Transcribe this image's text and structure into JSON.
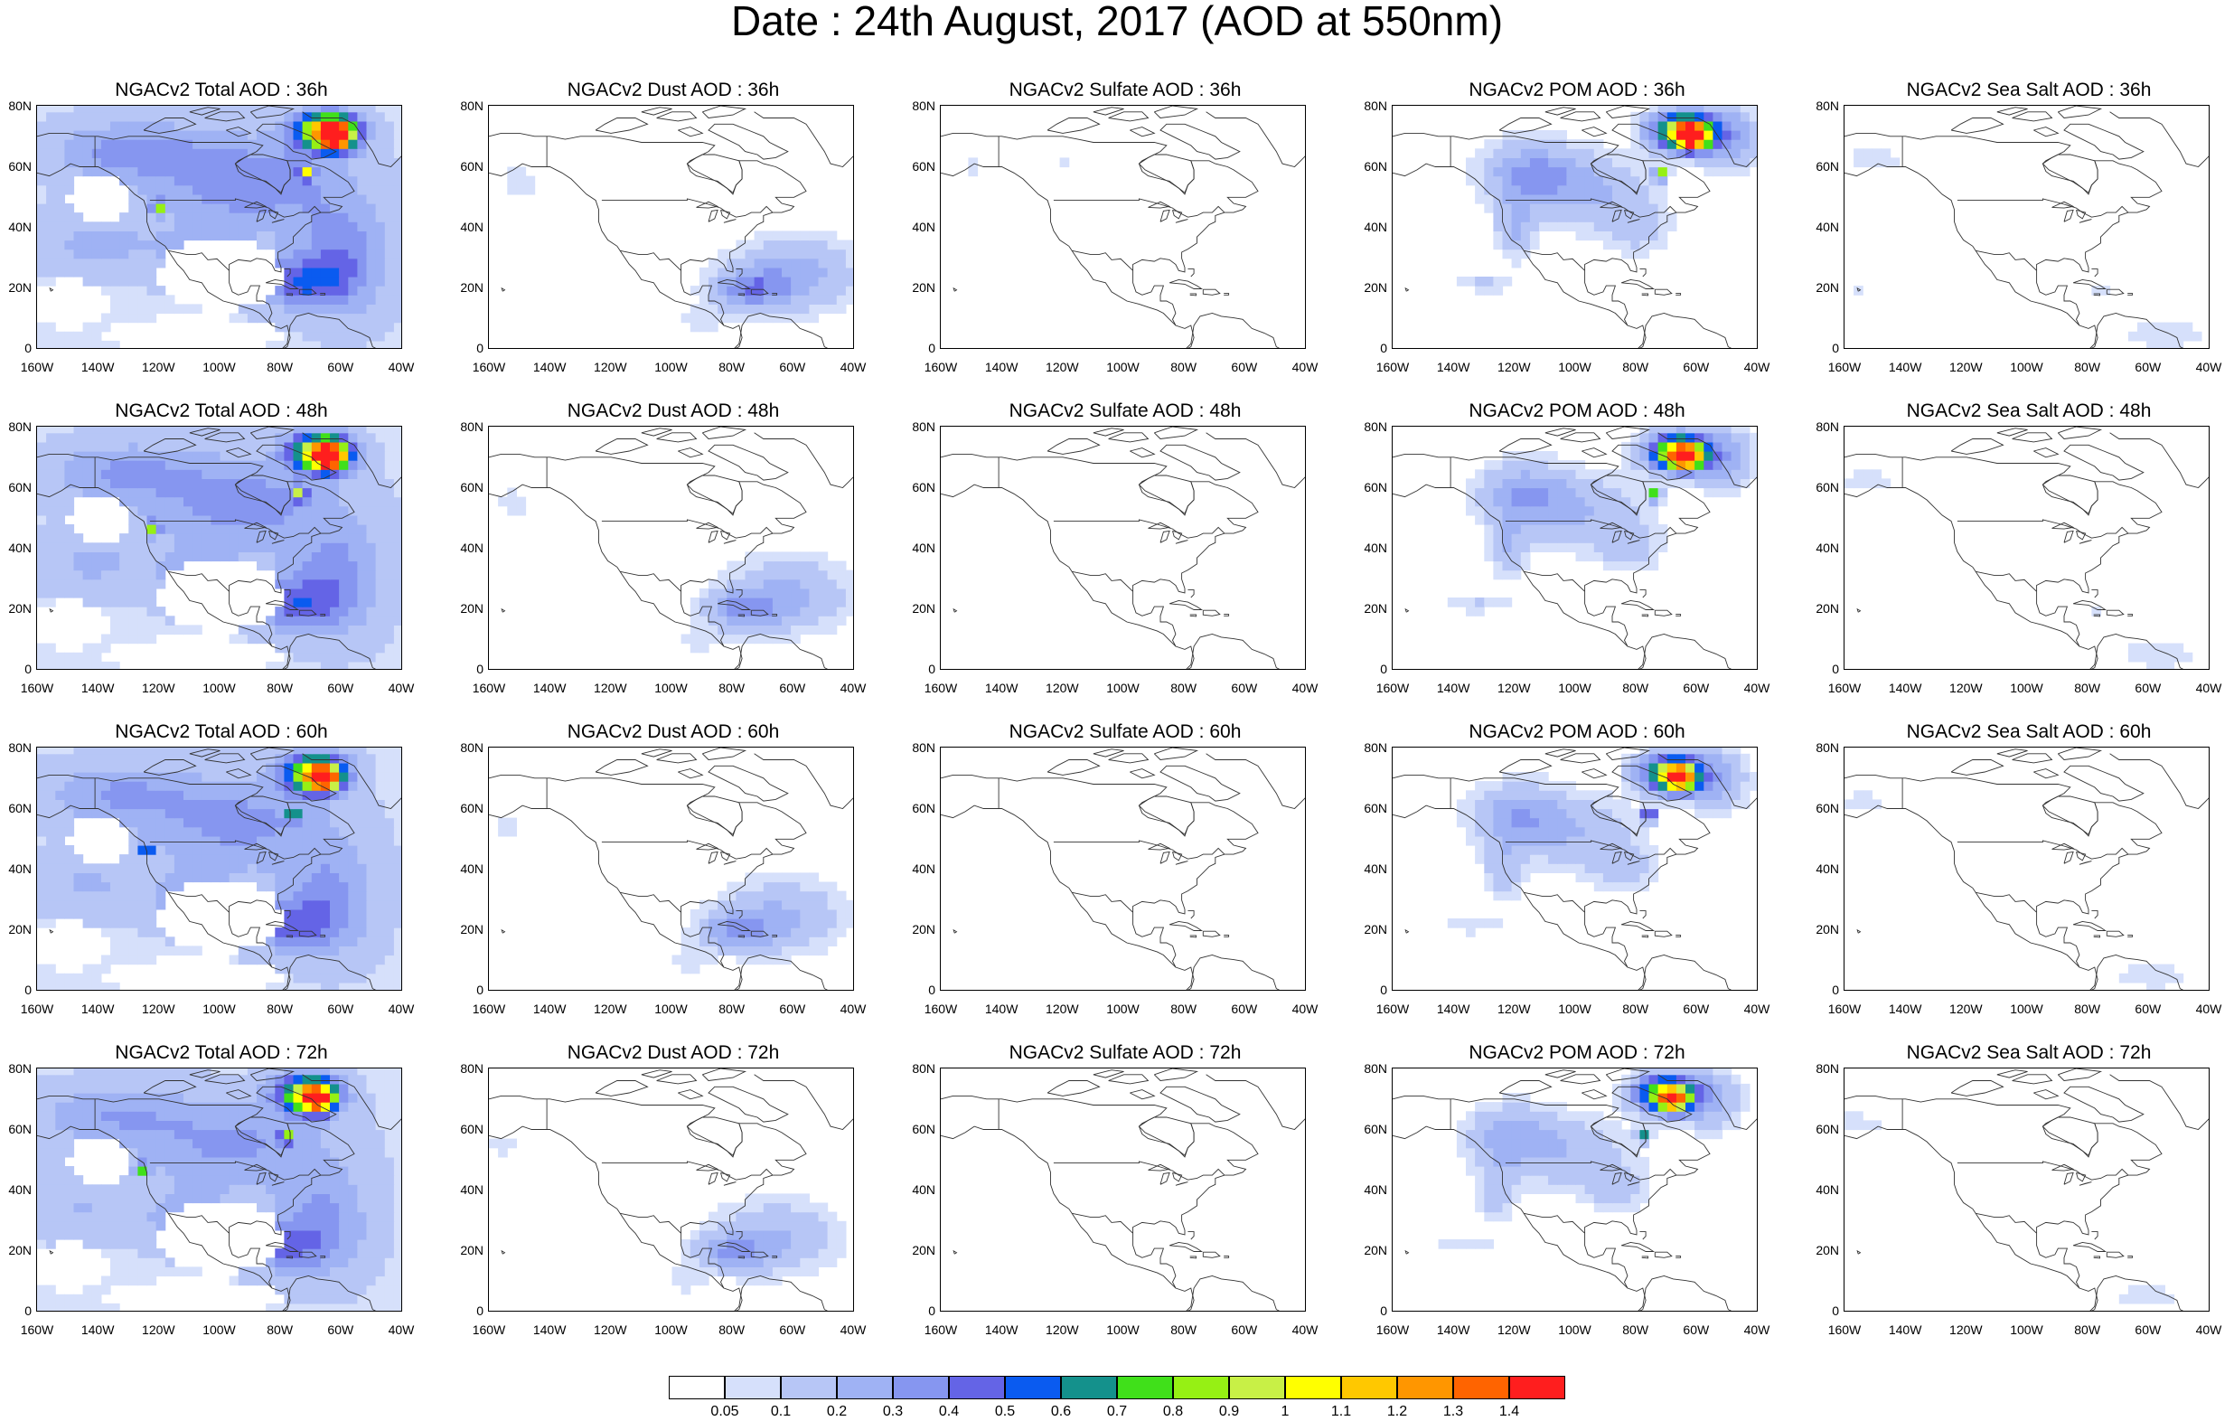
{
  "title": "Date : 24th August, 2017 (AOD at 550nm)",
  "lat_labels": [
    "80N",
    "60N",
    "40N",
    "20N",
    "0"
  ],
  "lon_labels": [
    "160W",
    "140W",
    "120W",
    "100W",
    "80W",
    "60W",
    "40W"
  ],
  "species": [
    {
      "key": "total",
      "label": "NGACv2 Total AOD"
    },
    {
      "key": "dust",
      "label": "NGACv2 Dust AOD"
    },
    {
      "key": "sulfate",
      "label": "NGACv2 Sulfate AOD"
    },
    {
      "key": "pom",
      "label": "NGACv2 POM AOD"
    },
    {
      "key": "seasalt",
      "label": "NGACv2 Sea Salt AOD"
    }
  ],
  "panels": [
    {
      "title": "NGACv2 Total AOD : 36h",
      "species": "total",
      "hour": "36h"
    },
    {
      "title": "NGACv2 Dust AOD : 36h",
      "species": "dust",
      "hour": "36h"
    },
    {
      "title": "NGACv2 Sulfate AOD : 36h",
      "species": "sulfate",
      "hour": "36h"
    },
    {
      "title": "NGACv2 POM AOD : 36h",
      "species": "pom",
      "hour": "36h"
    },
    {
      "title": "NGACv2 Sea Salt AOD : 36h",
      "species": "seasalt",
      "hour": "36h"
    },
    {
      "title": "NGACv2 Total AOD : 48h",
      "species": "total",
      "hour": "48h"
    },
    {
      "title": "NGACv2 Dust AOD : 48h",
      "species": "dust",
      "hour": "48h"
    },
    {
      "title": "NGACv2 Sulfate AOD : 48h",
      "species": "sulfate",
      "hour": "48h"
    },
    {
      "title": "NGACv2 POM AOD : 48h",
      "species": "pom",
      "hour": "48h"
    },
    {
      "title": "NGACv2 Sea Salt AOD : 48h",
      "species": "seasalt",
      "hour": "48h"
    },
    {
      "title": "NGACv2 Total AOD : 60h",
      "species": "total",
      "hour": "60h"
    },
    {
      "title": "NGACv2 Dust AOD : 60h",
      "species": "dust",
      "hour": "60h"
    },
    {
      "title": "NGACv2 Sulfate AOD : 60h",
      "species": "sulfate",
      "hour": "60h"
    },
    {
      "title": "NGACv2 POM AOD : 60h",
      "species": "pom",
      "hour": "60h"
    },
    {
      "title": "NGACv2 Sea Salt AOD : 60h",
      "species": "seasalt",
      "hour": "60h"
    },
    {
      "title": "NGACv2 Total AOD : 72h",
      "species": "total",
      "hour": "72h"
    },
    {
      "title": "NGACv2 Dust AOD : 72h",
      "species": "dust",
      "hour": "72h"
    },
    {
      "title": "NGACv2 Sulfate AOD : 72h",
      "species": "sulfate",
      "hour": "72h"
    },
    {
      "title": "NGACv2 POM AOD : 72h",
      "species": "pom",
      "hour": "72h"
    },
    {
      "title": "NGACv2 Sea Salt  AOD : 72h",
      "species": "seasalt",
      "hour": "72h"
    }
  ],
  "colorbar": {
    "labels": [
      "0.05",
      "0.1",
      "0.2",
      "0.3",
      "0.4",
      "0.5",
      "0.6",
      "0.7",
      "0.8",
      "0.9",
      "1",
      "1.1",
      "1.2",
      "1.3",
      "1.4"
    ],
    "colors": [
      "#ffffff",
      "#d6e0fb",
      "#b7c6f6",
      "#9fb2f4",
      "#8696f0",
      "#6464e6",
      "#0a5bf0",
      "#14918c",
      "#40e01a",
      "#96f014",
      "#c8f046",
      "#ffff00",
      "#ffc800",
      "#ff9600",
      "#ff6400",
      "#ff1e1e"
    ]
  }
}
